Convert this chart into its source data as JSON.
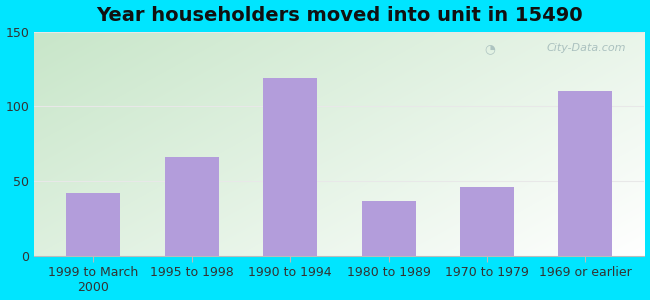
{
  "title": "Year householders moved into unit in 15490",
  "categories": [
    "1999 to March\n2000",
    "1995 to 1998",
    "1990 to 1994",
    "1980 to 1989",
    "1970 to 1979",
    "1969 or earlier"
  ],
  "values": [
    42,
    66,
    119,
    37,
    46,
    110
  ],
  "bar_color": "#b39ddb",
  "ylim": [
    0,
    150
  ],
  "yticks": [
    0,
    50,
    100,
    150
  ],
  "background_outer": "#00e5ff",
  "background_grad_topleft": "#c8e6c9",
  "background_grad_bottomright": "#ffffff",
  "title_fontsize": 14,
  "tick_fontsize": 9,
  "watermark": "City-Data.com",
  "grid_color": "#e8e8e8",
  "spine_color": "#bbbbbb"
}
